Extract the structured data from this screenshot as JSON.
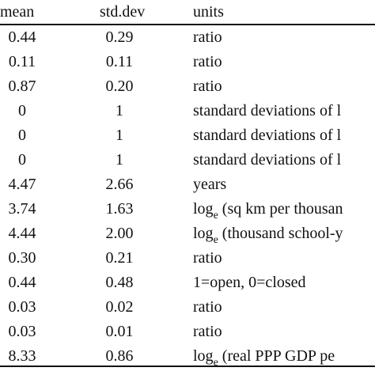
{
  "table": {
    "headers": {
      "mean": "mean",
      "std_dev": "std.dev",
      "units": "units"
    },
    "rows": [
      {
        "mean": "0.44",
        "std_dev": "0.29",
        "units_prefix": "ratio",
        "units_sub": "",
        "units_suffix": ""
      },
      {
        "mean": "0.11",
        "std_dev": "0.11",
        "units_prefix": "ratio",
        "units_sub": "",
        "units_suffix": ""
      },
      {
        "mean": "0.87",
        "std_dev": "0.20",
        "units_prefix": "ratio",
        "units_sub": "",
        "units_suffix": ""
      },
      {
        "mean": "0",
        "std_dev": "1",
        "units_prefix": "standard deviations of l",
        "units_sub": "",
        "units_suffix": ""
      },
      {
        "mean": "0",
        "std_dev": "1",
        "units_prefix": "standard deviations of l",
        "units_sub": "",
        "units_suffix": ""
      },
      {
        "mean": "0",
        "std_dev": "1",
        "units_prefix": "standard deviations of l",
        "units_sub": "",
        "units_suffix": ""
      },
      {
        "mean": "4.47",
        "std_dev": "2.66",
        "units_prefix": "years",
        "units_sub": "",
        "units_suffix": ""
      },
      {
        "mean": "3.74",
        "std_dev": "1.63",
        "units_prefix": "log",
        "units_sub": "e",
        "units_suffix": " (sq km per thousan"
      },
      {
        "mean": "4.44",
        "std_dev": "2.00",
        "units_prefix": "log",
        "units_sub": "e",
        "units_suffix": " (thousand school-y"
      },
      {
        "mean": "0.30",
        "std_dev": "0.21",
        "units_prefix": "ratio",
        "units_sub": "",
        "units_suffix": ""
      },
      {
        "mean": "0.44",
        "std_dev": "0.48",
        "units_prefix": "1=open, 0=closed",
        "units_sub": "",
        "units_suffix": ""
      },
      {
        "mean": "0.03",
        "std_dev": "0.02",
        "units_prefix": "ratio",
        "units_sub": "",
        "units_suffix": ""
      },
      {
        "mean": "0.03",
        "std_dev": "0.01",
        "units_prefix": "ratio",
        "units_sub": "",
        "units_suffix": ""
      },
      {
        "mean": "8.33",
        "std_dev": "0.86",
        "units_prefix": "log",
        "units_sub": "e",
        "units_suffix": " (real PPP GDP pe"
      }
    ]
  }
}
